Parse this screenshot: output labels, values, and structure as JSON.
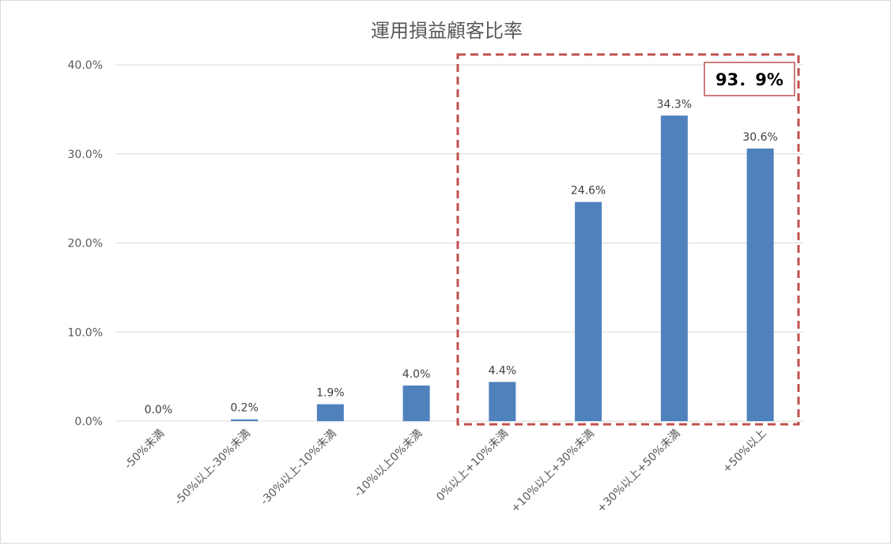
{
  "chart_data": {
    "type": "bar",
    "title": "運用損益顧客比率",
    "categories": [
      "-50%未満",
      "-50%以上-30%未満",
      "-30%以上-10%未満",
      "-10%以上0%未満",
      "0%以上+10%未満",
      "+10%以上+30%未満",
      "+30%以上+50%未満",
      "+50%以上"
    ],
    "values": [
      0.0,
      0.2,
      1.9,
      4.0,
      4.4,
      24.6,
      34.3,
      30.6
    ],
    "data_labels": [
      "0.0%",
      "0.2%",
      "1.9%",
      "4.0%",
      "4.4%",
      "24.6%",
      "34.3%",
      "30.6%"
    ],
    "y_ticks": [
      0,
      10,
      20,
      30,
      40
    ],
    "y_tick_labels": [
      "0.0%",
      "10.0%",
      "20.0%",
      "30.0%",
      "40.0%"
    ],
    "ylim": [
      0,
      40
    ],
    "grid": true,
    "bar_color": "#4f81bd",
    "annotation": {
      "text": "93．9%",
      "highlight_color": "#c0504d",
      "highlighted_categories": [
        "0%以上+10%未満",
        "+10%以上+30%未満",
        "+30%以上+50%未満",
        "+50%以上"
      ]
    }
  }
}
